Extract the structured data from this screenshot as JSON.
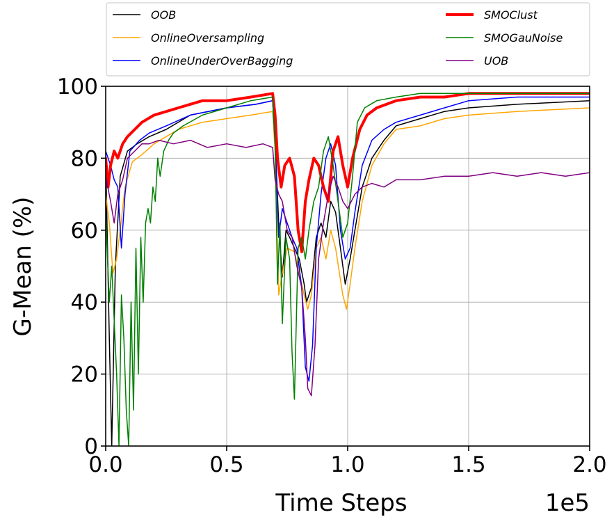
{
  "chart_data": {
    "type": "line",
    "title": "",
    "xlabel": "Time Steps",
    "ylabel": "G-Mean (%)",
    "x_offset_label": "1e5",
    "xlim": [
      0,
      200000
    ],
    "ylim": [
      0,
      100
    ],
    "x_ticks": [
      0,
      50000,
      100000,
      150000,
      200000
    ],
    "x_tick_labels": [
      "0.0",
      "0.5",
      "1.0",
      "1.5",
      "2.0"
    ],
    "y_ticks": [
      0,
      20,
      40,
      60,
      80,
      100
    ],
    "y_tick_labels": [
      "0",
      "20",
      "40",
      "60",
      "80",
      "100"
    ],
    "grid": true,
    "legend_position": "top, above plot (2 columns)",
    "series": [
      {
        "name": "OOB",
        "color": "#000000",
        "width": 1.5,
        "points": [
          [
            0,
            80
          ],
          [
            1500,
            30
          ],
          [
            2500,
            0
          ],
          [
            4000,
            50
          ],
          [
            6000,
            75
          ],
          [
            9000,
            82
          ],
          [
            13000,
            84
          ],
          [
            18000,
            86
          ],
          [
            25000,
            88
          ],
          [
            35000,
            92
          ],
          [
            50000,
            94
          ],
          [
            62000,
            95
          ],
          [
            69000,
            96
          ],
          [
            70000,
            85
          ],
          [
            71500,
            62
          ],
          [
            73000,
            47
          ],
          [
            74500,
            60
          ],
          [
            76000,
            58
          ],
          [
            78000,
            55
          ],
          [
            80000,
            52
          ],
          [
            82000,
            45
          ],
          [
            83000,
            40
          ],
          [
            85000,
            44
          ],
          [
            87000,
            58
          ],
          [
            89000,
            62
          ],
          [
            91000,
            58
          ],
          [
            93000,
            68
          ],
          [
            95000,
            65
          ],
          [
            97000,
            55
          ],
          [
            99000,
            45
          ],
          [
            101000,
            52
          ],
          [
            103000,
            60
          ],
          [
            106000,
            72
          ],
          [
            110000,
            80
          ],
          [
            115000,
            85
          ],
          [
            120000,
            89
          ],
          [
            130000,
            91
          ],
          [
            140000,
            93
          ],
          [
            150000,
            94
          ],
          [
            170000,
            95
          ],
          [
            200000,
            96
          ]
        ]
      },
      {
        "name": "OnlineOversampling",
        "color": "#ffa500",
        "width": 1.5,
        "points": [
          [
            0,
            70
          ],
          [
            1500,
            62
          ],
          [
            3000,
            48
          ],
          [
            4500,
            52
          ],
          [
            6000,
            60
          ],
          [
            8000,
            72
          ],
          [
            11000,
            79
          ],
          [
            15000,
            81
          ],
          [
            20000,
            84
          ],
          [
            30000,
            88
          ],
          [
            40000,
            90
          ],
          [
            50000,
            91
          ],
          [
            60000,
            92
          ],
          [
            69000,
            93
          ],
          [
            70000,
            82
          ],
          [
            71500,
            42
          ],
          [
            73000,
            48
          ],
          [
            75000,
            55
          ],
          [
            78000,
            54
          ],
          [
            80000,
            48
          ],
          [
            82000,
            42
          ],
          [
            83500,
            38
          ],
          [
            85000,
            42
          ],
          [
            87000,
            55
          ],
          [
            89000,
            58
          ],
          [
            91000,
            52
          ],
          [
            93000,
            60
          ],
          [
            95000,
            55
          ],
          [
            98000,
            42
          ],
          [
            99500,
            38
          ],
          [
            101000,
            45
          ],
          [
            103000,
            55
          ],
          [
            106000,
            68
          ],
          [
            110000,
            78
          ],
          [
            115000,
            84
          ],
          [
            120000,
            88
          ],
          [
            130000,
            89
          ],
          [
            140000,
            91
          ],
          [
            150000,
            92
          ],
          [
            170000,
            93
          ],
          [
            200000,
            94
          ]
        ]
      },
      {
        "name": "OnlineUnderOverBagging",
        "color": "#0000ff",
        "width": 1.5,
        "points": [
          [
            0,
            82
          ],
          [
            2000,
            78
          ],
          [
            3500,
            74
          ],
          [
            5000,
            72
          ],
          [
            6500,
            55
          ],
          [
            8000,
            70
          ],
          [
            10000,
            82
          ],
          [
            14000,
            85
          ],
          [
            18000,
            87
          ],
          [
            25000,
            89
          ],
          [
            35000,
            92
          ],
          [
            50000,
            94
          ],
          [
            62000,
            95
          ],
          [
            69000,
            96
          ],
          [
            70000,
            84
          ],
          [
            71500,
            58
          ],
          [
            73000,
            66
          ],
          [
            75000,
            62
          ],
          [
            77000,
            58
          ],
          [
            79000,
            55
          ],
          [
            81000,
            44
          ],
          [
            82500,
            22
          ],
          [
            84000,
            18
          ],
          [
            85500,
            28
          ],
          [
            87000,
            55
          ],
          [
            89000,
            70
          ],
          [
            91000,
            80
          ],
          [
            93000,
            84
          ],
          [
            95000,
            78
          ],
          [
            97000,
            60
          ],
          [
            99000,
            52
          ],
          [
            101000,
            55
          ],
          [
            103000,
            65
          ],
          [
            106000,
            78
          ],
          [
            110000,
            85
          ],
          [
            115000,
            88
          ],
          [
            120000,
            90
          ],
          [
            130000,
            92
          ],
          [
            140000,
            94
          ],
          [
            150000,
            96
          ],
          [
            170000,
            97
          ],
          [
            200000,
            97
          ]
        ]
      },
      {
        "name": "SMOClust",
        "color": "#ff0000",
        "width": 4,
        "points": [
          [
            0,
            80
          ],
          [
            1000,
            72
          ],
          [
            2000,
            78
          ],
          [
            3500,
            82
          ],
          [
            5000,
            80
          ],
          [
            7000,
            84
          ],
          [
            9000,
            86
          ],
          [
            12000,
            88
          ],
          [
            15000,
            90
          ],
          [
            20000,
            92
          ],
          [
            30000,
            94
          ],
          [
            40000,
            96
          ],
          [
            50000,
            96
          ],
          [
            60000,
            97
          ],
          [
            69000,
            98
          ],
          [
            70000,
            92
          ],
          [
            71000,
            80
          ],
          [
            72500,
            72
          ],
          [
            74000,
            78
          ],
          [
            76000,
            80
          ],
          [
            78000,
            75
          ],
          [
            79500,
            60
          ],
          [
            81000,
            54
          ],
          [
            82500,
            68
          ],
          [
            84000,
            74
          ],
          [
            86000,
            80
          ],
          [
            88000,
            78
          ],
          [
            90000,
            72
          ],
          [
            92000,
            68
          ],
          [
            94000,
            82
          ],
          [
            96000,
            86
          ],
          [
            98000,
            78
          ],
          [
            100000,
            72
          ],
          [
            102000,
            80
          ],
          [
            105000,
            88
          ],
          [
            108000,
            92
          ],
          [
            112000,
            94
          ],
          [
            120000,
            96
          ],
          [
            130000,
            97
          ],
          [
            140000,
            97
          ],
          [
            150000,
            98
          ],
          [
            170000,
            98
          ],
          [
            200000,
            98
          ]
        ]
      },
      {
        "name": "SMOGauNoise",
        "color": "#008000",
        "width": 1.5,
        "points": [
          [
            0,
            65
          ],
          [
            1500,
            40
          ],
          [
            2500,
            50
          ],
          [
            3500,
            35
          ],
          [
            4500,
            20
          ],
          [
            5000,
            10
          ],
          [
            5500,
            0
          ],
          [
            6500,
            42
          ],
          [
            7500,
            30
          ],
          [
            8500,
            10
          ],
          [
            9500,
            0
          ],
          [
            10500,
            40
          ],
          [
            11500,
            10
          ],
          [
            12500,
            55
          ],
          [
            13500,
            20
          ],
          [
            14500,
            58
          ],
          [
            15500,
            40
          ],
          [
            16500,
            62
          ],
          [
            17500,
            66
          ],
          [
            18500,
            62
          ],
          [
            19500,
            72
          ],
          [
            20500,
            68
          ],
          [
            21500,
            80
          ],
          [
            22500,
            75
          ],
          [
            24000,
            82
          ],
          [
            26000,
            85
          ],
          [
            28000,
            87
          ],
          [
            32000,
            89
          ],
          [
            40000,
            92
          ],
          [
            50000,
            94
          ],
          [
            60000,
            96
          ],
          [
            69000,
            97
          ],
          [
            70000,
            85
          ],
          [
            71000,
            45
          ],
          [
            72000,
            62
          ],
          [
            73000,
            34
          ],
          [
            74500,
            58
          ],
          [
            76000,
            52
          ],
          [
            77000,
            26
          ],
          [
            78000,
            13
          ],
          [
            79500,
            55
          ],
          [
            81000,
            58
          ],
          [
            82500,
            52
          ],
          [
            84000,
            60
          ],
          [
            86000,
            68
          ],
          [
            88000,
            72
          ],
          [
            90000,
            82
          ],
          [
            92000,
            86
          ],
          [
            94000,
            78
          ],
          [
            96000,
            68
          ],
          [
            98000,
            58
          ],
          [
            100000,
            62
          ],
          [
            102000,
            75
          ],
          [
            104000,
            90
          ],
          [
            107000,
            94
          ],
          [
            112000,
            96
          ],
          [
            120000,
            97
          ],
          [
            130000,
            98
          ],
          [
            150000,
            98
          ],
          [
            170000,
            98
          ],
          [
            200000,
            98
          ]
        ]
      },
      {
        "name": "UOB",
        "color": "#800080",
        "width": 1.5,
        "points": [
          [
            0,
            75
          ],
          [
            2000,
            68
          ],
          [
            3500,
            62
          ],
          [
            5000,
            70
          ],
          [
            7000,
            74
          ],
          [
            9000,
            80
          ],
          [
            12000,
            82
          ],
          [
            15000,
            84
          ],
          [
            18000,
            84
          ],
          [
            22000,
            85
          ],
          [
            28000,
            84
          ],
          [
            35000,
            85
          ],
          [
            42000,
            83
          ],
          [
            50000,
            84
          ],
          [
            58000,
            83
          ],
          [
            65000,
            84
          ],
          [
            69000,
            83
          ],
          [
            70000,
            74
          ],
          [
            71500,
            70
          ],
          [
            73000,
            68
          ],
          [
            75000,
            60
          ],
          [
            77000,
            58
          ],
          [
            79000,
            50
          ],
          [
            81000,
            44
          ],
          [
            82500,
            30
          ],
          [
            83500,
            16
          ],
          [
            85000,
            14
          ],
          [
            86500,
            28
          ],
          [
            88000,
            52
          ],
          [
            90000,
            62
          ],
          [
            92000,
            70
          ],
          [
            94000,
            75
          ],
          [
            96000,
            72
          ],
          [
            98000,
            68
          ],
          [
            100000,
            66
          ],
          [
            103000,
            70
          ],
          [
            106000,
            72
          ],
          [
            110000,
            73
          ],
          [
            115000,
            72
          ],
          [
            120000,
            74
          ],
          [
            130000,
            74
          ],
          [
            140000,
            75
          ],
          [
            150000,
            75
          ],
          [
            160000,
            76
          ],
          [
            170000,
            75
          ],
          [
            180000,
            76
          ],
          [
            190000,
            75
          ],
          [
            200000,
            76
          ]
        ]
      }
    ]
  }
}
